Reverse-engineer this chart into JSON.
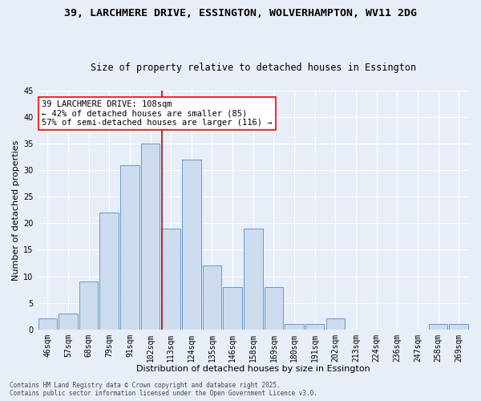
{
  "title1": "39, LARCHMERE DRIVE, ESSINGTON, WOLVERHAMPTON, WV11 2DG",
  "title2": "Size of property relative to detached houses in Essington",
  "xlabel": "Distribution of detached houses by size in Essington",
  "ylabel": "Number of detached properties",
  "bar_labels": [
    "46sqm",
    "57sqm",
    "68sqm",
    "79sqm",
    "91sqm",
    "102sqm",
    "113sqm",
    "124sqm",
    "135sqm",
    "146sqm",
    "158sqm",
    "169sqm",
    "180sqm",
    "191sqm",
    "202sqm",
    "213sqm",
    "224sqm",
    "236sqm",
    "247sqm",
    "258sqm",
    "269sqm"
  ],
  "bar_values": [
    2,
    3,
    9,
    22,
    31,
    35,
    19,
    32,
    12,
    8,
    19,
    8,
    1,
    1,
    2,
    0,
    0,
    0,
    0,
    1,
    1
  ],
  "bar_color": "#ccdcee",
  "bar_edge_color": "#6699cc",
  "ylim": [
    0,
    45
  ],
  "yticks": [
    0,
    5,
    10,
    15,
    20,
    25,
    30,
    35,
    40,
    45
  ],
  "vline_color": "#cc0000",
  "annotation_text": "39 LARCHMERE DRIVE: 108sqm\n← 42% of detached houses are smaller (85)\n57% of semi-detached houses are larger (116) →",
  "annotation_box_color": "white",
  "annotation_box_edge_color": "red",
  "footer_text": "Contains HM Land Registry data © Crown copyright and database right 2025.\nContains public sector information licensed under the Open Government Licence v3.0.",
  "bg_color": "#e8eef8",
  "title_fontsize": 9.5,
  "subtitle_fontsize": 8.5,
  "xlabel_fontsize": 8,
  "ylabel_fontsize": 8,
  "tick_fontsize": 7,
  "annotation_fontsize": 7.5,
  "footer_fontsize": 5.5
}
